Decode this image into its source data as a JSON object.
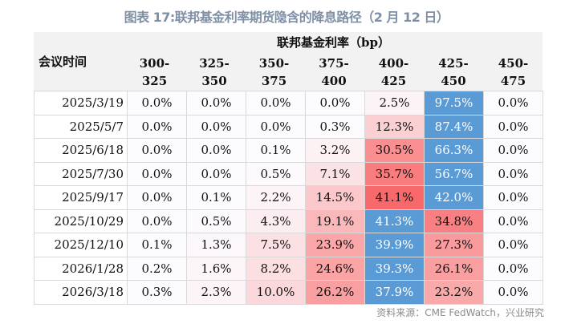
{
  "title": "图表 17:联邦基金利率期货隐含的降息路径（2 月 12 日）",
  "source": "资料来源：CME FedWatch，兴业研究",
  "colors": {
    "max": "#5b9bd5",
    "high": "#f8696b",
    "low": "#fcfcff"
  },
  "chart_data": {
    "type": "table",
    "group_header": "联邦基金利率（bp）",
    "row_header": "会议时间",
    "columns": [
      [
        "300-",
        "325"
      ],
      [
        "325-",
        "350"
      ],
      [
        "350-",
        "375"
      ],
      [
        "375-",
        "400"
      ],
      [
        "400-",
        "425"
      ],
      [
        "425-",
        "450"
      ],
      [
        "450-",
        "475"
      ]
    ],
    "rows": [
      {
        "date": "2025/3/19",
        "values": [
          "0.0%",
          "0.0%",
          "0.0%",
          "0.0%",
          "2.5%",
          "97.5%",
          "0.0%"
        ]
      },
      {
        "date": "2025/5/7",
        "values": [
          "0.0%",
          "0.0%",
          "0.0%",
          "0.3%",
          "12.3%",
          "87.4%",
          "0.0%"
        ]
      },
      {
        "date": "2025/6/18",
        "values": [
          "0.0%",
          "0.0%",
          "0.1%",
          "3.2%",
          "30.5%",
          "66.3%",
          "0.0%"
        ]
      },
      {
        "date": "2025/7/30",
        "values": [
          "0.0%",
          "0.0%",
          "0.5%",
          "7.1%",
          "35.7%",
          "56.7%",
          "0.0%"
        ]
      },
      {
        "date": "2025/9/17",
        "values": [
          "0.0%",
          "0.1%",
          "2.2%",
          "14.5%",
          "41.1%",
          "42.0%",
          "0.0%"
        ]
      },
      {
        "date": "2025/10/29",
        "values": [
          "0.0%",
          "0.5%",
          "4.3%",
          "19.1%",
          "41.3%",
          "34.8%",
          "0.0%"
        ]
      },
      {
        "date": "2025/12/10",
        "values": [
          "0.1%",
          "1.3%",
          "7.5%",
          "23.9%",
          "39.9%",
          "27.3%",
          "0.0%"
        ]
      },
      {
        "date": "2026/1/28",
        "values": [
          "0.2%",
          "1.6%",
          "8.2%",
          "24.6%",
          "39.3%",
          "26.1%",
          "0.0%"
        ]
      },
      {
        "date": "2026/3/18",
        "values": [
          "0.3%",
          "2.3%",
          "10.0%",
          "26.2%",
          "37.9%",
          "23.2%",
          "0.0%"
        ]
      }
    ]
  }
}
